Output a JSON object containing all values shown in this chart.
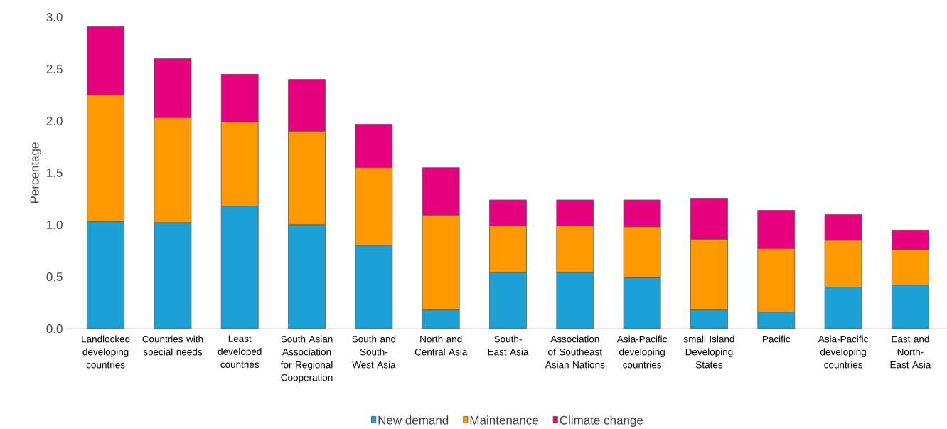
{
  "chart_data": {
    "type": "bar",
    "stacked": true,
    "ylabel": "Percentage",
    "categories": [
      "Landlocked developing countries",
      "Countries with special needs",
      "Least developed countries",
      "South Asian Association for Regional Cooperation",
      "South and South-West Asia",
      "North and Central Asia",
      "South-East Asia",
      "Association of Southeast Asian Nations",
      "Asia-Pacific developing countries",
      "small Island Developing States",
      "Pacific",
      "Asia-Pacific developing countries",
      "East and North-East Asia"
    ],
    "series": [
      {
        "name": "New demand",
        "color": "#1ba1d6",
        "values": [
          1.03,
          1.02,
          1.18,
          1.0,
          0.8,
          0.18,
          0.54,
          0.54,
          0.49,
          0.18,
          0.16,
          0.4,
          0.42
        ]
      },
      {
        "name": "Maintenance",
        "color": "#ff9900",
        "values": [
          1.22,
          1.01,
          0.81,
          0.9,
          0.75,
          0.91,
          0.45,
          0.45,
          0.49,
          0.68,
          0.61,
          0.45,
          0.34
        ]
      },
      {
        "name": "Climate change",
        "color": "#e6007e",
        "values": [
          0.66,
          0.57,
          0.46,
          0.5,
          0.42,
          0.46,
          0.25,
          0.25,
          0.26,
          0.39,
          0.37,
          0.25,
          0.19
        ]
      }
    ],
    "ylim": [
      0,
      3.0
    ],
    "yticks": [
      {
        "value": 0,
        "label": "0.0"
      },
      {
        "value": 0.5,
        "label": "0.5"
      },
      {
        "value": 1.0,
        "label": "1.0"
      },
      {
        "value": 1.5,
        "label": "1.5"
      },
      {
        "value": 2.0,
        "label": "2.0"
      },
      {
        "value": 2.5,
        "label": "2.5"
      },
      {
        "value": 3.0,
        "label": "3.0"
      }
    ],
    "grid": false,
    "legend": "bottom"
  }
}
